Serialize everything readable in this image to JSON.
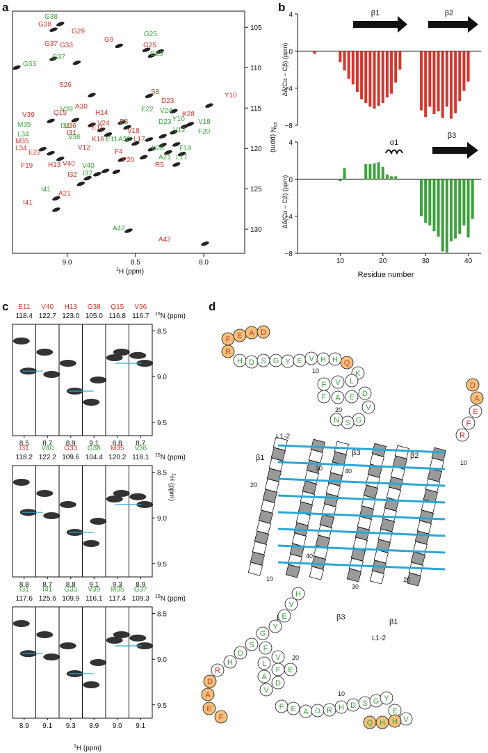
{
  "panel_labels": {
    "a": "a",
    "b": "b",
    "c": "c",
    "d": "d"
  },
  "colors": {
    "red": "#d7352b",
    "green": "#3aa33a",
    "blue": "#2aa7d6",
    "orange": "#f2c07a",
    "gray": "#9a9a9a"
  },
  "panel_a": {
    "xlabel_sup": "1",
    "xlabel": "H (ppm)",
    "ylabel_sup": "15",
    "ylabel": "N (ppm)",
    "xticks": [
      "9.0",
      "8.5",
      "8.0"
    ],
    "yticks": [
      "105",
      "110",
      "115",
      "120",
      "125",
      "130"
    ],
    "red_labels": [
      "G38",
      "G37",
      "G33",
      "G29",
      "G9",
      "G25",
      "S26",
      "S8",
      "D23",
      "Y10",
      "V39",
      "Q15",
      "A30",
      "H14",
      "V36",
      "E11",
      "I31",
      "K16",
      "V24",
      "E3",
      "V18",
      "K28",
      "M35",
      "L34",
      "E22",
      "V12",
      "F4",
      "L17",
      "F20",
      "F19",
      "R5",
      "H13",
      "V40",
      "I32",
      "A21",
      "I41",
      "A42"
    ],
    "green_labels": [
      "G38",
      "G25",
      "G29",
      "G33",
      "G37",
      "V39",
      "I31",
      "V36",
      "M35",
      "L34",
      "E22",
      "V24",
      "D23",
      "Y10",
      "V12",
      "F20",
      "V18",
      "E11",
      "A30",
      "K28",
      "F19",
      "A21",
      "L17",
      "V40",
      "I32",
      "I41",
      "A42"
    ]
  },
  "panel_b": {
    "ylabel_top": "Δδ(Cα − Cβ) (ppm)",
    "ylabel_bottom": "Δδ(Cα − Cβ) (ppm)",
    "xlabel": "Residue number",
    "beta1": "β1",
    "beta2": "β2",
    "beta3": "β3",
    "alpha1": "α1",
    "yticks": [
      "4",
      "0",
      "−4",
      "−8"
    ],
    "xticks": [
      "10",
      "20",
      "30",
      "40"
    ]
  },
  "chart_data": [
    {
      "type": "bar",
      "title": "",
      "xlabel": "Residue number",
      "ylabel": "Δδ(Cα − Cβ) (ppm)",
      "ylim": [
        -8,
        4
      ],
      "series": [
        {
          "name": "red",
          "values": [
            [
              4,
              -0.3
            ],
            [
              10,
              -1.2
            ],
            [
              11,
              -2.1
            ],
            [
              12,
              -3.0
            ],
            [
              13,
              -3.6
            ],
            [
              14,
              -4.4
            ],
            [
              15,
              -5.2
            ],
            [
              16,
              -5.6
            ],
            [
              17,
              -6.0
            ],
            [
              18,
              -6.2
            ],
            [
              19,
              -5.9
            ],
            [
              20,
              -5.6
            ],
            [
              21,
              -5.0
            ],
            [
              22,
              -4.6
            ],
            [
              23,
              -3.4
            ],
            [
              24,
              -2.0
            ],
            [
              29,
              -6.4
            ],
            [
              30,
              -7.1
            ],
            [
              31,
              -6.0
            ],
            [
              32,
              -6.8
            ],
            [
              33,
              -6.5
            ],
            [
              34,
              -7.2
            ],
            [
              35,
              -6.0
            ],
            [
              36,
              -7.3
            ],
            [
              37,
              -6.7
            ],
            [
              38,
              -5.4
            ],
            [
              39,
              -4.3
            ],
            [
              40,
              -3.3
            ]
          ]
        }
      ]
    },
    {
      "type": "bar",
      "title": "",
      "xlabel": "Residue number",
      "ylabel": "Δδ(Cα − Cβ) (ppm)",
      "ylim": [
        -8,
        4
      ],
      "series": [
        {
          "name": "green",
          "values": [
            [
              10,
              -0.2
            ],
            [
              11,
              1.2
            ],
            [
              16,
              1.6
            ],
            [
              17,
              1.6
            ],
            [
              18,
              1.7
            ],
            [
              19,
              1.8
            ],
            [
              20,
              1.3
            ],
            [
              21,
              0.5
            ],
            [
              22,
              0.3
            ],
            [
              23,
              0.3
            ],
            [
              29,
              -4.0
            ],
            [
              30,
              -4.7
            ],
            [
              31,
              -5.0
            ],
            [
              32,
              -5.6
            ],
            [
              33,
              -6.2
            ],
            [
              34,
              -7.8
            ],
            [
              35,
              -7.9
            ],
            [
              36,
              -6.7
            ],
            [
              37,
              -6.4
            ],
            [
              38,
              -5.9
            ],
            [
              39,
              -5.0
            ],
            [
              40,
              -6.3
            ],
            [
              41,
              -4.3
            ]
          ]
        }
      ]
    }
  ],
  "panel_c": {
    "rows": [
      {
        "labels": [
          {
            "t": "E11",
            "c": "r"
          },
          {
            "t": "V40",
            "c": "r"
          },
          {
            "t": "H13",
            "c": "r"
          },
          {
            "t": "G38",
            "c": "r"
          },
          {
            "t": "Q15",
            "c": "r"
          },
          {
            "t": "V36",
            "c": "r"
          }
        ],
        "shifts": [
          "118.4",
          "122.7",
          "123.0",
          "105.0",
          "116.8",
          "116.7"
        ],
        "xticks": [
          "8.5",
          "8.7",
          "8.9",
          "9.1",
          "8.8",
          "8.7"
        ]
      },
      {
        "labels": [
          {
            "t": "I31",
            "c": "r"
          },
          {
            "t": "V40",
            "c": "g"
          },
          {
            "t": "G33",
            "c": "r"
          },
          {
            "t": "G38",
            "c": "g"
          },
          {
            "t": "M35",
            "c": "r"
          },
          {
            "t": "V36",
            "c": "g"
          }
        ],
        "shifts": [
          "118.2",
          "122.2",
          "109.6",
          "104.4",
          "120.2",
          "118.1"
        ],
        "xticks": [
          "8.8",
          "8.7",
          "8.8",
          "9.1",
          "9.3",
          "8.9"
        ]
      },
      {
        "labels": [
          {
            "t": "I31",
            "c": "g"
          },
          {
            "t": "I41",
            "c": "g"
          },
          {
            "t": "G33",
            "c": "g"
          },
          {
            "t": "V39",
            "c": "g"
          },
          {
            "t": "M35",
            "c": "g"
          },
          {
            "t": "G37",
            "c": "g"
          }
        ],
        "shifts": [
          "117.6",
          "125.6",
          "109.9",
          "116.1",
          "117.4",
          "109.3"
        ],
        "xticks": [
          "8.9",
          "9.1",
          "9.3",
          "8.9",
          "9.0",
          "9.1"
        ]
      }
    ],
    "n_label": "15N (ppm)",
    "n_sup": "15",
    "n_text": "N (ppm)",
    "yticks": [
      "8.5",
      "9.0",
      "9.5"
    ],
    "ylabel_sup": "1",
    "ylabel": "H (ppm)",
    "xlabel_sup": "1",
    "xlabel": "H (ppm)"
  },
  "panel_d": {
    "top_seq": [
      "F",
      "E",
      "A",
      "D",
      "R",
      "H",
      "D",
      "S",
      "G",
      "Y",
      "E",
      "V",
      "H",
      "H",
      "Q",
      "K"
    ],
    "loop_seq": [
      "F",
      "V",
      "L",
      "F",
      "A",
      "E",
      "D",
      "V",
      "G",
      "S",
      "N"
    ],
    "labels": {
      "l12": "L1-2",
      "b1": "β1",
      "b2": "β2",
      "b3": "β3",
      "n10": "10",
      "n20": "20",
      "n30": "30",
      "n40": "40"
    }
  }
}
